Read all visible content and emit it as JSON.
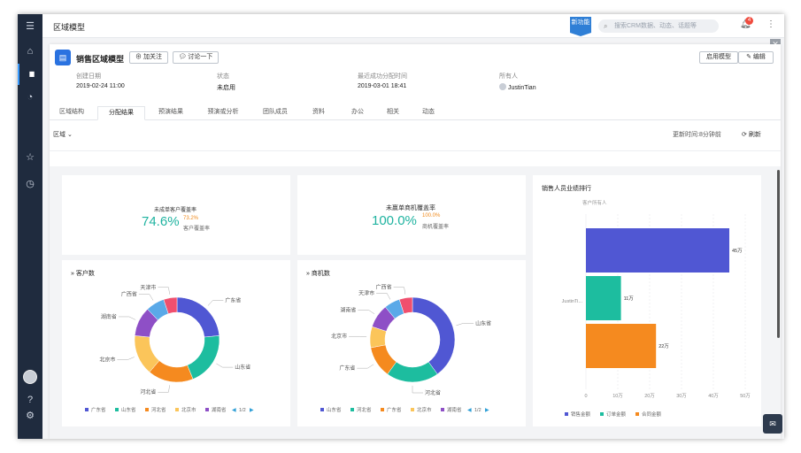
{
  "sidebar": {
    "items": [
      {
        "name": "menu-icon",
        "glyph": "☰"
      },
      {
        "name": "home-icon",
        "glyph": "⌂"
      },
      {
        "name": "chart-icon",
        "glyph": "▮▮"
      },
      {
        "name": "pie-icon",
        "glyph": "◔"
      },
      {
        "name": "star-icon",
        "glyph": "☆"
      },
      {
        "name": "history-icon",
        "glyph": "◷"
      },
      {
        "name": "help-icon",
        "glyph": "?"
      },
      {
        "name": "settings-icon",
        "glyph": "⚙"
      }
    ]
  },
  "topbar": {
    "title": "区域模型",
    "new_badge": "新功能",
    "search_placeholder": "搜索CRM数据、动态、话题等",
    "notification_count": "4"
  },
  "header": {
    "title": "销售区域模型",
    "follow_label": "加关注",
    "discuss_label": "讨论一下",
    "enable_label": "启用模型",
    "edit_label": "编辑"
  },
  "meta": [
    {
      "label": "创建日期",
      "value": "2019-02-24 11:00"
    },
    {
      "label": "状态",
      "value": "未启用"
    },
    {
      "label": "最近成功分配时间",
      "value": "2019-03-01 18:41"
    },
    {
      "label": "所有人",
      "value": "JustinTian"
    }
  ],
  "tabs": [
    "区域结构",
    "分配结果",
    "预演结果",
    "预演或分析",
    "团队成员",
    "资料",
    "办公",
    "相关",
    "动态"
  ],
  "active_tab": 1,
  "toolbar": {
    "region_label": "区域",
    "update_label": "更新时间:8分钟前",
    "refresh_label": "刷新"
  },
  "kpi": [
    {
      "title": "未成单客户覆盖率",
      "value": "74.6%",
      "sub_value": "73.2%",
      "sub_label": "客户覆盖率"
    },
    {
      "title": "未赢单商机覆盖率",
      "value": "100.0%",
      "sub_value": "100.0%",
      "sub_label": "商机覆盖率"
    }
  ],
  "colors": {
    "blue": "#5057d3",
    "teal": "#1dbd9f",
    "orange": "#f58a1f",
    "yellow": "#fbc55a",
    "purple": "#8e4fc6",
    "sky": "#5aa9e8",
    "red": "#f04f6e",
    "accent": "#2f7fd6"
  },
  "customer_chart": {
    "title": "客户数",
    "slices": [
      {
        "label": "广东省",
        "value": 23,
        "color": "#5057d3"
      },
      {
        "label": "山东省",
        "value": 20,
        "color": "#1dbd9f"
      },
      {
        "label": "河北省",
        "value": 17,
        "color": "#f58a1f"
      },
      {
        "label": "北京市",
        "value": 15,
        "color": "#fbc55a"
      },
      {
        "label": "湖南省",
        "value": 11,
        "color": "#8e4fc6"
      },
      {
        "label": "广西省",
        "value": 7,
        "color": "#5aa9e8"
      },
      {
        "label": "天津市",
        "value": 5,
        "color": "#f04f6e"
      }
    ],
    "legend": [
      "广东省",
      "山东省",
      "河北省",
      "北京市",
      "湖南省"
    ],
    "pager": "1/2"
  },
  "opportunity_chart": {
    "title": "商机数",
    "slices": [
      {
        "label": "山东省",
        "value": 40,
        "color": "#5057d3"
      },
      {
        "label": "河北省",
        "value": 20,
        "color": "#1dbd9f"
      },
      {
        "label": "广东省",
        "value": 12,
        "color": "#f58a1f"
      },
      {
        "label": "北京市",
        "value": 8,
        "color": "#fbc55a"
      },
      {
        "label": "湖南省",
        "value": 9,
        "color": "#8e4fc6"
      },
      {
        "label": "天津市",
        "value": 6,
        "color": "#5aa9e8"
      },
      {
        "label": "广西省",
        "value": 5,
        "color": "#f04f6e"
      }
    ],
    "legend": [
      "山东省",
      "河北省",
      "广东省",
      "北京市",
      "湖南省"
    ],
    "pager": "1/2"
  },
  "chart_data": {
    "type": "bar",
    "title": "销售人员业绩排行",
    "subtitle": "客户所有人",
    "categories": [
      "JustinTi..."
    ],
    "series": [
      {
        "name": "销售金额",
        "values": [
          45
        ],
        "label": "45万",
        "color": "#5057d3"
      },
      {
        "name": "订单金额",
        "values": [
          11
        ],
        "label": "11万",
        "color": "#1dbd9f"
      },
      {
        "name": "合同金额",
        "values": [
          22
        ],
        "label": "22万",
        "color": "#f58a1f"
      }
    ],
    "xticks": [
      "0",
      "10万",
      "20万",
      "30万",
      "40万",
      "50万"
    ],
    "xlim": [
      0,
      50
    ],
    "orientation": "horizontal",
    "grid": true,
    "legend_position": "bottom"
  }
}
